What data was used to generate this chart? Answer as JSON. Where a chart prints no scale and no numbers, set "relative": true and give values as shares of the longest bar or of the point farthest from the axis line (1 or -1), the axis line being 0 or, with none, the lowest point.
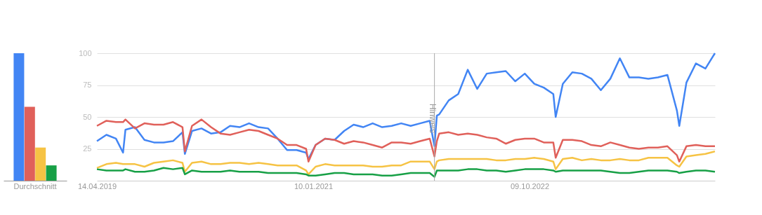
{
  "chart_data": [
    {
      "type": "bar",
      "relative": true,
      "categories": [
        "Durchschnitt"
      ],
      "series": [
        {
          "color": "#4285f4",
          "values": [
            1
          ]
        },
        {
          "color": "#e0605a",
          "values": [
            0.58
          ]
        },
        {
          "color": "#f6c344",
          "values": [
            0.26
          ]
        },
        {
          "color": "#17a046",
          "values": [
            0.12
          ]
        }
      ],
      "grid": false,
      "legend": false
    },
    {
      "type": "line",
      "x": [
        "2019-04-14",
        "2019-05-12",
        "2019-06-09",
        "2019-06-30",
        "2019-07-07",
        "2019-08-04",
        "2019-09-01",
        "2019-09-29",
        "2019-10-27",
        "2019-11-24",
        "2019-12-22",
        "2019-12-29",
        "2020-01-19",
        "2020-02-16",
        "2020-03-15",
        "2020-04-12",
        "2020-05-10",
        "2020-06-07",
        "2020-07-05",
        "2020-08-02",
        "2020-08-30",
        "2020-09-27",
        "2020-10-25",
        "2020-11-22",
        "2020-12-20",
        "2020-12-27",
        "2021-01-17",
        "2021-02-14",
        "2021-03-14",
        "2021-04-11",
        "2021-05-09",
        "2021-06-06",
        "2021-07-04",
        "2021-08-01",
        "2021-08-29",
        "2021-09-26",
        "2021-10-24",
        "2021-11-21",
        "2021-12-19",
        "2022-01-02",
        "2022-01-09",
        "2022-01-16",
        "2022-02-13",
        "2022-03-13",
        "2022-04-10",
        "2022-05-08",
        "2022-06-05",
        "2022-07-03",
        "2022-07-31",
        "2022-08-28",
        "2022-09-25",
        "2022-10-23",
        "2022-11-20",
        "2022-12-18",
        "2022-12-25",
        "2023-01-15",
        "2023-02-12",
        "2023-03-12",
        "2023-04-09",
        "2023-05-07",
        "2023-06-04",
        "2023-07-02",
        "2023-07-30",
        "2023-08-27",
        "2023-09-24",
        "2023-10-22",
        "2023-11-19",
        "2023-12-17",
        "2023-12-24",
        "2024-01-14",
        "2024-02-11",
        "2024-03-10",
        "2024-04-07"
      ],
      "series": [
        {
          "color": "#4285f4",
          "values": [
            31,
            36,
            33,
            22,
            40,
            42,
            32,
            30,
            30,
            31,
            38,
            21,
            39,
            41,
            37,
            38,
            43,
            42,
            45,
            42,
            41,
            33,
            24,
            24,
            22,
            17,
            28,
            33,
            32,
            39,
            44,
            42,
            45,
            42,
            43,
            45,
            43,
            45,
            47,
            27,
            51,
            52,
            63,
            68,
            87,
            72,
            84,
            85,
            86,
            78,
            84,
            76,
            73,
            68,
            50,
            76,
            85,
            84,
            80,
            71,
            80,
            96,
            81,
            81,
            80,
            81,
            83,
            55,
            43,
            77,
            92,
            88,
            100
          ]
        },
        {
          "color": "#e0605a",
          "values": [
            43,
            47,
            46,
            46,
            48,
            41,
            45,
            44,
            44,
            46,
            42,
            23,
            43,
            48,
            42,
            37,
            36,
            38,
            40,
            39,
            36,
            33,
            28,
            28,
            25,
            15,
            28,
            33,
            32,
            29,
            31,
            30,
            28,
            26,
            30,
            30,
            29,
            31,
            33,
            19,
            31,
            37,
            38,
            36,
            37,
            36,
            34,
            33,
            29,
            32,
            33,
            33,
            30,
            30,
            18,
            32,
            32,
            31,
            28,
            27,
            30,
            28,
            26,
            25,
            26,
            26,
            27,
            20,
            15,
            27,
            28,
            27,
            27
          ]
        },
        {
          "color": "#f6c344",
          "values": [
            10,
            13,
            14,
            13,
            13,
            13,
            11,
            14,
            15,
            16,
            14,
            7,
            14,
            15,
            13,
            13,
            14,
            14,
            13,
            14,
            13,
            12,
            12,
            12,
            8,
            5,
            11,
            13,
            12,
            12,
            12,
            12,
            11,
            11,
            12,
            12,
            15,
            15,
            15,
            9,
            15,
            16,
            17,
            17,
            17,
            17,
            17,
            16,
            16,
            17,
            17,
            18,
            17,
            15,
            9,
            17,
            18,
            16,
            17,
            16,
            16,
            17,
            16,
            16,
            18,
            18,
            18,
            12,
            11,
            19,
            20,
            21,
            23
          ]
        },
        {
          "color": "#17a046",
          "values": [
            9,
            8,
            8,
            8,
            9,
            7,
            7,
            8,
            10,
            9,
            10,
            5,
            8,
            7,
            7,
            7,
            8,
            7,
            7,
            7,
            6,
            6,
            6,
            6,
            5,
            4,
            4,
            5,
            6,
            6,
            5,
            5,
            5,
            4,
            4,
            5,
            6,
            6,
            6,
            3,
            8,
            8,
            8,
            8,
            9,
            9,
            8,
            8,
            7,
            8,
            9,
            9,
            9,
            8,
            7,
            8,
            8,
            8,
            8,
            8,
            7,
            6,
            6,
            7,
            8,
            8,
            8,
            7,
            6,
            7,
            8,
            8,
            7
          ]
        }
      ],
      "xlim": [
        "2019-04-14",
        "2024-04-07"
      ],
      "xticks": [
        {
          "value": "2019-04-14",
          "label": "14.04.2019"
        },
        {
          "value": "2021-01-10",
          "label": "10.01.2021"
        },
        {
          "value": "2022-10-09",
          "label": "09.10.2022"
        }
      ],
      "ylim": [
        0,
        100
      ],
      "yticks": [
        25,
        50,
        75,
        100
      ],
      "grid": "y",
      "legend": false,
      "marker": "none",
      "line_style": "solid",
      "ref_lines": [
        {
          "axis": "x",
          "value": "2022-01-02",
          "label": "Hinweis",
          "color": "#aaaaaa"
        }
      ]
    }
  ]
}
